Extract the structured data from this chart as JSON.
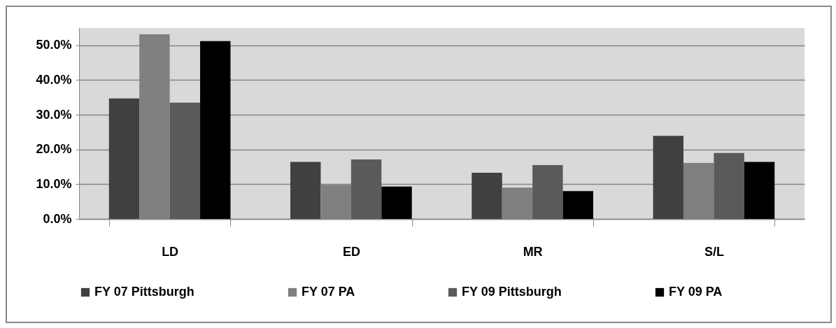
{
  "chart_data": {
    "type": "bar",
    "categories": [
      "LD",
      "ED",
      "MR",
      "S/L"
    ],
    "series": [
      {
        "name": "FY 07 Pittsburgh",
        "color": "#404040",
        "values": [
          34.7,
          16.4,
          13.3,
          23.9
        ]
      },
      {
        "name": "FY 07 PA",
        "color": "#808080",
        "values": [
          53.2,
          9.8,
          9.0,
          16.1
        ]
      },
      {
        "name": "FY 09 Pittsburgh",
        "color": "#5a5a5a",
        "values": [
          33.5,
          17.1,
          15.5,
          19.0
        ]
      },
      {
        "name": "FY 09 PA",
        "color": "#000000",
        "values": [
          51.2,
          9.3,
          8.0,
          16.4
        ]
      }
    ],
    "ylim": [
      0,
      55
    ],
    "yticks": [
      {
        "value": 0,
        "label": "0.0%"
      },
      {
        "value": 10,
        "label": "10.0%"
      },
      {
        "value": 20,
        "label": "20.0%"
      },
      {
        "value": 30,
        "label": "30.0%"
      },
      {
        "value": 40,
        "label": "40.0%"
      },
      {
        "value": 50,
        "label": "50.0%"
      }
    ],
    "grid": "y",
    "legend": "bottom"
  }
}
